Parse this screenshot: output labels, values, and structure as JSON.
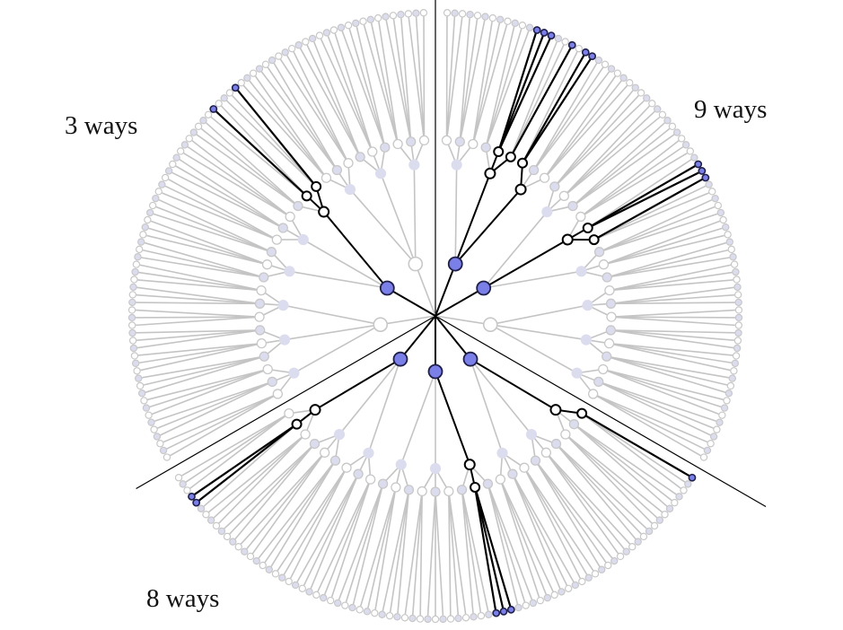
{
  "labels": {
    "top_left": "3 ways",
    "top_right": "9 ways",
    "bottom_left": "8 ways"
  },
  "colors": {
    "background": "#ffffff",
    "edge_gray": "#c4c4c4",
    "edge_highlight": "#000000",
    "node_lavender": "#dcdcef",
    "node_gray_outline": "#c8c8c8",
    "node_blue": "#7b7fe8",
    "node_blue_stroke": "#1f1f4a",
    "divider": "#000000"
  },
  "structure": {
    "sectors": 3,
    "level1_nodes_per_sector": 3,
    "level2_nodes_per_sector": 9,
    "level3_nodes_per_sector": 27,
    "leaves_per_level3_node": 3,
    "highlighted_paths": {
      "top_left": 3,
      "top_right": 9,
      "bottom_left": 8
    }
  }
}
